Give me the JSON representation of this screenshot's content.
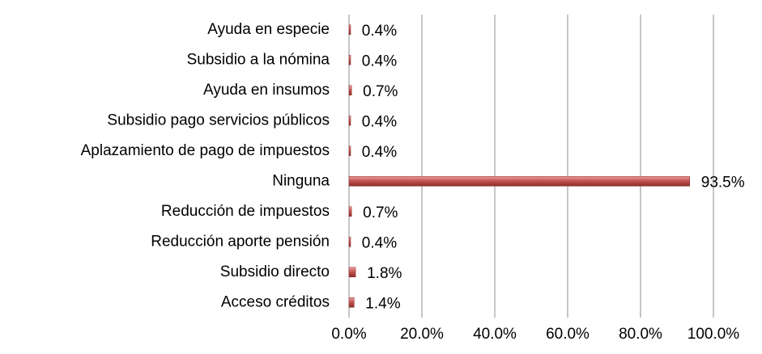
{
  "chart_data": {
    "type": "bar",
    "orientation": "horizontal",
    "categories": [
      "Ayuda en especie",
      "Subsidio a la nómina",
      "Ayuda en insumos",
      "Subsidio pago servicios públicos",
      "Aplazamiento de pago de impuestos",
      "Ninguna",
      "Reducción de impuestos",
      "Reducción aporte pensión",
      "Subsidio directo",
      "Acceso créditos"
    ],
    "values": [
      0.4,
      0.4,
      0.7,
      0.4,
      0.4,
      93.5,
      0.7,
      0.4,
      1.8,
      1.4
    ],
    "value_labels": [
      "0.4%",
      "0.4%",
      "0.7%",
      "0.4%",
      "0.4%",
      "93.5%",
      "0.7%",
      "0.4%",
      "1.8%",
      "1.4%"
    ],
    "color": "#c0504d",
    "xlim": [
      0,
      100
    ],
    "xticks": [
      {
        "value": 0,
        "label": "0.0%"
      },
      {
        "value": 20,
        "label": "20.0%"
      },
      {
        "value": 40,
        "label": "40.0%"
      },
      {
        "value": 60,
        "label": "60.0%"
      },
      {
        "value": 80,
        "label": "80.0%"
      },
      {
        "value": 100,
        "label": "100.0%"
      }
    ],
    "grid": true
  }
}
